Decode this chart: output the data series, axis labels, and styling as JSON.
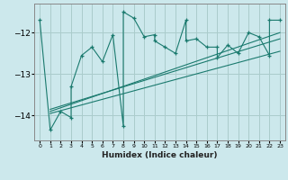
{
  "xlabel": "Humidex (Indice chaleur)",
  "bg_color": "#cce8ec",
  "grid_color": "#aacccc",
  "line_color": "#1a7a6e",
  "xlim": [
    -0.5,
    23.5
  ],
  "ylim": [
    -14.6,
    -11.3
  ],
  "xticks": [
    0,
    1,
    2,
    3,
    4,
    5,
    6,
    7,
    8,
    9,
    10,
    11,
    12,
    13,
    14,
    15,
    16,
    17,
    18,
    19,
    20,
    21,
    22,
    23
  ],
  "yticks": [
    -14,
    -13,
    -12
  ],
  "series1_x": [
    0,
    1,
    2,
    3,
    3,
    4,
    5,
    6,
    7,
    8,
    8,
    9,
    10,
    11,
    11,
    12,
    13,
    14,
    14,
    15,
    16,
    17,
    17,
    18,
    19,
    20,
    21,
    22,
    22,
    23
  ],
  "series1_y": [
    -11.7,
    -14.35,
    -13.9,
    -14.05,
    -13.3,
    -12.55,
    -12.35,
    -12.7,
    -12.05,
    -14.25,
    -11.5,
    -11.65,
    -12.1,
    -12.05,
    -12.2,
    -12.35,
    -12.5,
    -11.7,
    -12.2,
    -12.15,
    -12.35,
    -12.35,
    -12.6,
    -12.3,
    -12.5,
    -12.0,
    -12.1,
    -12.55,
    -11.7,
    -11.7
  ],
  "trend_lines": [
    {
      "x": [
        1,
        23
      ],
      "y": [
        -13.9,
        -12.0
      ]
    },
    {
      "x": [
        1,
        23
      ],
      "y": [
        -13.85,
        -12.15
      ]
    },
    {
      "x": [
        1,
        23
      ],
      "y": [
        -13.95,
        -12.45
      ]
    }
  ]
}
